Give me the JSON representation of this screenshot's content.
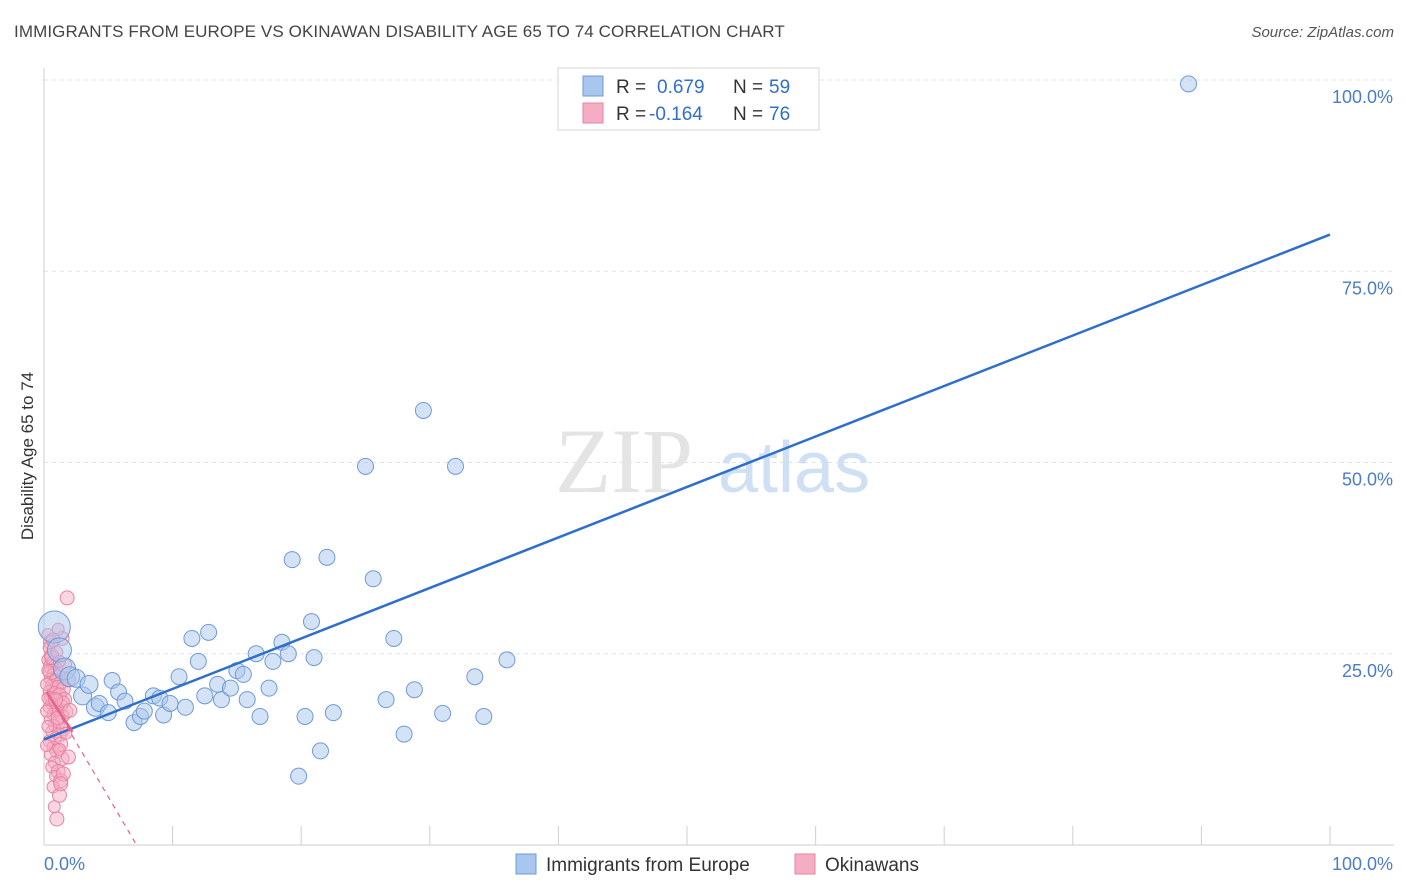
{
  "title": "IMMIGRANTS FROM EUROPE VS OKINAWAN DISABILITY AGE 65 TO 74 CORRELATION CHART",
  "source": "Source: ZipAtlas.com",
  "watermark": {
    "part1": "ZIP",
    "part2": "atlas"
  },
  "colors": {
    "blue_fill": "#a9c6ee",
    "blue_stroke": "#6f9ad6",
    "blue_line": "#2f6fcc",
    "pink_fill": "#f4aec4",
    "pink_stroke": "#e882a3",
    "pink_line": "#e8608c",
    "grid": "#dde3ea",
    "tick_text": "#4a7cc7"
  },
  "legend": {
    "rows": [
      {
        "r_label": "R =",
        "r_value": "0.679",
        "n_label": "N =",
        "n_value": "59",
        "series": "blue"
      },
      {
        "r_label": "R =",
        "r_value": "-0.164",
        "n_label": "N =",
        "n_value": "76",
        "series": "pink"
      }
    ]
  },
  "chart_data": {
    "type": "scatter",
    "title": "IMMIGRANTS FROM EUROPE VS OKINAWAN DISABILITY AGE 65 TO 74 CORRELATION CHART",
    "xlabel": "",
    "ylabel": "Disability Age 65 to 74",
    "xlim": [
      0,
      100
    ],
    "ylim": [
      0,
      100
    ],
    "x_tick_labels": [
      "0.0%",
      "100.0%"
    ],
    "y_tick_labels": [
      "25.0%",
      "50.0%",
      "75.0%",
      "100.0%"
    ],
    "y_tick_values": [
      25,
      50,
      75,
      100
    ],
    "grid": true,
    "series": [
      {
        "name": "Immigrants from Europe",
        "color": "blue",
        "trend": {
          "x": [
            0,
            100
          ],
          "y": [
            13.8,
            79.8
          ],
          "style": "solid"
        },
        "points": [
          {
            "x": 0.8,
            "y": 28.5,
            "s": 16
          },
          {
            "x": 1.2,
            "y": 25.5,
            "s": 12
          },
          {
            "x": 1.6,
            "y": 23.0,
            "s": 11
          },
          {
            "x": 2.0,
            "y": 22.0,
            "s": 10
          },
          {
            "x": 2.5,
            "y": 21.8,
            "s": 9
          },
          {
            "x": 3.0,
            "y": 19.5,
            "s": 9
          },
          {
            "x": 3.5,
            "y": 21.0,
            "s": 9
          },
          {
            "x": 4.0,
            "y": 18.0,
            "s": 9
          },
          {
            "x": 4.3,
            "y": 18.5,
            "s": 8
          },
          {
            "x": 5.0,
            "y": 17.3,
            "s": 8
          },
          {
            "x": 5.3,
            "y": 21.5,
            "s": 8
          },
          {
            "x": 5.8,
            "y": 20.0,
            "s": 8
          },
          {
            "x": 6.3,
            "y": 18.8,
            "s": 8
          },
          {
            "x": 7.0,
            "y": 16.0,
            "s": 8
          },
          {
            "x": 7.5,
            "y": 16.8,
            "s": 8
          },
          {
            "x": 7.8,
            "y": 17.5,
            "s": 8
          },
          {
            "x": 8.5,
            "y": 19.5,
            "s": 8
          },
          {
            "x": 9.0,
            "y": 19.2,
            "s": 8
          },
          {
            "x": 9.3,
            "y": 17.0,
            "s": 8
          },
          {
            "x": 9.8,
            "y": 18.5,
            "s": 8
          },
          {
            "x": 10.5,
            "y": 22.0,
            "s": 8
          },
          {
            "x": 11.0,
            "y": 18.0,
            "s": 8
          },
          {
            "x": 11.5,
            "y": 27.0,
            "s": 8
          },
          {
            "x": 12.0,
            "y": 24.0,
            "s": 8
          },
          {
            "x": 12.5,
            "y": 19.5,
            "s": 8
          },
          {
            "x": 12.8,
            "y": 27.8,
            "s": 8
          },
          {
            "x": 13.5,
            "y": 21.0,
            "s": 8
          },
          {
            "x": 13.8,
            "y": 19.0,
            "s": 8
          },
          {
            "x": 14.5,
            "y": 20.5,
            "s": 8
          },
          {
            "x": 15.0,
            "y": 22.8,
            "s": 8
          },
          {
            "x": 15.5,
            "y": 22.3,
            "s": 8
          },
          {
            "x": 15.8,
            "y": 19.0,
            "s": 8
          },
          {
            "x": 16.5,
            "y": 25.0,
            "s": 8
          },
          {
            "x": 16.8,
            "y": 16.8,
            "s": 8
          },
          {
            "x": 17.5,
            "y": 20.5,
            "s": 8
          },
          {
            "x": 17.8,
            "y": 24.0,
            "s": 8
          },
          {
            "x": 18.5,
            "y": 26.5,
            "s": 8
          },
          {
            "x": 19.0,
            "y": 25.0,
            "s": 8
          },
          {
            "x": 19.3,
            "y": 37.3,
            "s": 8
          },
          {
            "x": 19.8,
            "y": 9.0,
            "s": 8
          },
          {
            "x": 20.3,
            "y": 16.8,
            "s": 8
          },
          {
            "x": 20.8,
            "y": 29.2,
            "s": 8
          },
          {
            "x": 21.0,
            "y": 24.5,
            "s": 8
          },
          {
            "x": 21.5,
            "y": 12.3,
            "s": 8
          },
          {
            "x": 22.0,
            "y": 37.6,
            "s": 8
          },
          {
            "x": 22.5,
            "y": 17.3,
            "s": 8
          },
          {
            "x": 25.0,
            "y": 49.5,
            "s": 8
          },
          {
            "x": 25.6,
            "y": 34.8,
            "s": 8
          },
          {
            "x": 26.6,
            "y": 19.0,
            "s": 8
          },
          {
            "x": 27.2,
            "y": 27.0,
            "s": 8
          },
          {
            "x": 28.0,
            "y": 14.5,
            "s": 8
          },
          {
            "x": 28.8,
            "y": 20.3,
            "s": 8
          },
          {
            "x": 29.5,
            "y": 56.8,
            "s": 8
          },
          {
            "x": 31.0,
            "y": 17.2,
            "s": 8
          },
          {
            "x": 32.0,
            "y": 49.5,
            "s": 8
          },
          {
            "x": 33.5,
            "y": 22.0,
            "s": 8
          },
          {
            "x": 34.2,
            "y": 16.8,
            "s": 8
          },
          {
            "x": 36.0,
            "y": 24.2,
            "s": 8
          },
          {
            "x": 89.0,
            "y": 99.5,
            "s": 8
          }
        ]
      },
      {
        "name": "Okinawans",
        "color": "pink",
        "trend_solid": {
          "x": [
            0.2,
            2.2
          ],
          "y": [
            20.0,
            14.8
          ],
          "style": "solid"
        },
        "trend_dashed": {
          "x": [
            0.2,
            7.2
          ],
          "y": [
            20.0,
            0.0
          ],
          "style": "dashed"
        },
        "points": [
          {
            "x": 0.3,
            "y": 27.5,
            "s": 6
          },
          {
            "x": 0.5,
            "y": 26.5,
            "s": 7
          },
          {
            "x": 0.4,
            "y": 25.8,
            "s": 6
          },
          {
            "x": 0.6,
            "y": 24.8,
            "s": 7
          },
          {
            "x": 0.3,
            "y": 24.2,
            "s": 6
          },
          {
            "x": 0.7,
            "y": 23.8,
            "s": 7
          },
          {
            "x": 0.5,
            "y": 23.3,
            "s": 7
          },
          {
            "x": 0.9,
            "y": 23.0,
            "s": 7
          },
          {
            "x": 0.4,
            "y": 22.6,
            "s": 6
          },
          {
            "x": 0.8,
            "y": 22.3,
            "s": 7
          },
          {
            "x": 1.1,
            "y": 22.0,
            "s": 7
          },
          {
            "x": 0.5,
            "y": 21.7,
            "s": 6
          },
          {
            "x": 0.9,
            "y": 21.4,
            "s": 7
          },
          {
            "x": 1.3,
            "y": 21.2,
            "s": 7
          },
          {
            "x": 0.6,
            "y": 20.9,
            "s": 6
          },
          {
            "x": 1.0,
            "y": 20.6,
            "s": 7
          },
          {
            "x": 1.5,
            "y": 20.4,
            "s": 7
          },
          {
            "x": 0.4,
            "y": 20.1,
            "s": 6
          },
          {
            "x": 0.8,
            "y": 19.8,
            "s": 7
          },
          {
            "x": 1.2,
            "y": 19.6,
            "s": 7
          },
          {
            "x": 0.5,
            "y": 19.3,
            "s": 6
          },
          {
            "x": 1.6,
            "y": 19.0,
            "s": 7
          },
          {
            "x": 0.9,
            "y": 18.8,
            "s": 7
          },
          {
            "x": 0.6,
            "y": 18.5,
            "s": 6
          },
          {
            "x": 1.3,
            "y": 18.2,
            "s": 7
          },
          {
            "x": 0.4,
            "y": 18.0,
            "s": 6
          },
          {
            "x": 1.0,
            "y": 17.7,
            "s": 7
          },
          {
            "x": 1.7,
            "y": 17.4,
            "s": 7
          },
          {
            "x": 0.7,
            "y": 17.1,
            "s": 6
          },
          {
            "x": 1.4,
            "y": 16.8,
            "s": 7
          },
          {
            "x": 0.5,
            "y": 16.4,
            "s": 6
          },
          {
            "x": 1.1,
            "y": 16.0,
            "s": 7
          },
          {
            "x": 0.8,
            "y": 15.6,
            "s": 6
          },
          {
            "x": 1.5,
            "y": 15.2,
            "s": 7
          },
          {
            "x": 0.6,
            "y": 14.8,
            "s": 6
          },
          {
            "x": 1.2,
            "y": 14.4,
            "s": 7
          },
          {
            "x": 0.9,
            "y": 14.0,
            "s": 6
          },
          {
            "x": 0.4,
            "y": 13.6,
            "s": 6
          },
          {
            "x": 1.3,
            "y": 13.2,
            "s": 7
          },
          {
            "x": 0.7,
            "y": 12.8,
            "s": 6
          },
          {
            "x": 1.0,
            "y": 12.3,
            "s": 7
          },
          {
            "x": 0.5,
            "y": 11.8,
            "s": 6
          },
          {
            "x": 1.4,
            "y": 11.3,
            "s": 7
          },
          {
            "x": 0.8,
            "y": 10.8,
            "s": 6
          },
          {
            "x": 0.6,
            "y": 10.2,
            "s": 6
          },
          {
            "x": 1.1,
            "y": 9.6,
            "s": 7
          },
          {
            "x": 0.9,
            "y": 9.0,
            "s": 6
          },
          {
            "x": 1.3,
            "y": 8.4,
            "s": 7
          },
          {
            "x": 0.7,
            "y": 7.6,
            "s": 6
          },
          {
            "x": 1.2,
            "y": 6.5,
            "s": 7
          },
          {
            "x": 0.8,
            "y": 5.0,
            "s": 6
          },
          {
            "x": 1.0,
            "y": 3.4,
            "s": 7
          },
          {
            "x": 1.8,
            "y": 32.3,
            "s": 7
          },
          {
            "x": 1.4,
            "y": 27.0,
            "s": 7
          },
          {
            "x": 1.1,
            "y": 28.2,
            "s": 6
          },
          {
            "x": 1.6,
            "y": 23.5,
            "s": 7
          },
          {
            "x": 1.9,
            "y": 21.6,
            "s": 7
          },
          {
            "x": 1.5,
            "y": 18.7,
            "s": 6
          },
          {
            "x": 2.0,
            "y": 17.6,
            "s": 7
          },
          {
            "x": 1.7,
            "y": 14.6,
            "s": 6
          },
          {
            "x": 1.2,
            "y": 12.5,
            "s": 6
          },
          {
            "x": 1.9,
            "y": 11.5,
            "s": 7
          },
          {
            "x": 1.5,
            "y": 9.3,
            "s": 7
          },
          {
            "x": 1.3,
            "y": 8.0,
            "s": 7
          },
          {
            "x": 0.3,
            "y": 19.2,
            "s": 6
          },
          {
            "x": 0.2,
            "y": 21.0,
            "s": 6
          },
          {
            "x": 0.3,
            "y": 22.8,
            "s": 6
          },
          {
            "x": 0.2,
            "y": 17.5,
            "s": 6
          },
          {
            "x": 0.3,
            "y": 15.5,
            "s": 6
          },
          {
            "x": 0.2,
            "y": 13.0,
            "s": 6
          },
          {
            "x": 0.6,
            "y": 24.5,
            "s": 7
          },
          {
            "x": 1.0,
            "y": 25.2,
            "s": 6
          },
          {
            "x": 0.7,
            "y": 26.8,
            "s": 7
          },
          {
            "x": 1.2,
            "y": 24.0,
            "s": 6
          },
          {
            "x": 0.9,
            "y": 19.0,
            "s": 7
          },
          {
            "x": 1.1,
            "y": 16.6,
            "s": 7
          }
        ]
      }
    ]
  }
}
